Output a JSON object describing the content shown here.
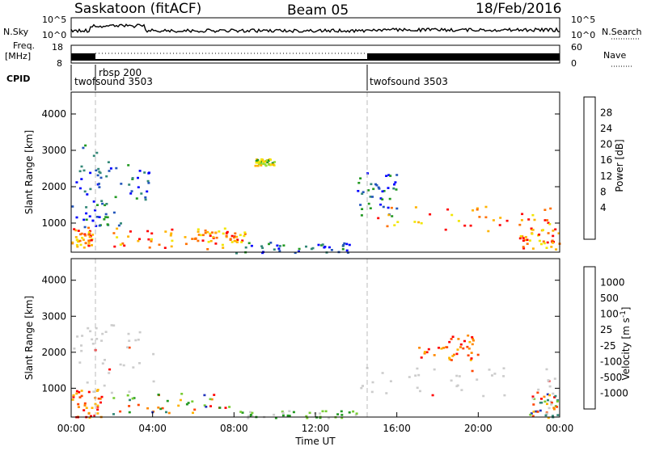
{
  "header": {
    "station": "Saskatoon (fitACF)",
    "beam": "Beam 05",
    "date": "18/Feb/2016"
  },
  "noise_panel": {
    "left_label": "N.Sky",
    "right_label": "N.Search",
    "left_ticks": [
      "10^5",
      "10^0"
    ],
    "right_ticks": [
      "10^5",
      "10^0"
    ]
  },
  "freq_panel": {
    "left_label_1": "Freq.",
    "left_label_2": "[MHz]",
    "right_label": "Nave",
    "left_ticks": [
      "18",
      "8"
    ],
    "right_ticks": [
      "60",
      "0"
    ]
  },
  "cpid_panel": {
    "label": "CPID",
    "segments": [
      {
        "name": "twofsound 3503",
        "start_hour": 0.0
      },
      {
        "name": "rbsp 200",
        "start_hour": 1.0
      },
      {
        "name": "twofsound 3503",
        "start_hour": 14.5
      }
    ]
  },
  "chart_data": [
    {
      "type": "heatmap",
      "title": "Power",
      "xlabel": "",
      "ylabel": "Slant Range [km]",
      "xlim_hours": [
        0,
        24
      ],
      "ylim_km": [
        200,
        4600
      ],
      "yticks": [
        "1000",
        "2000",
        "3000",
        "4000"
      ],
      "colorbar_label": "Power [dB]",
      "colorbar_ticks": [
        "28",
        "24",
        "20",
        "16",
        "12",
        "8",
        "4"
      ],
      "colorbar_colors": [
        "#ff0000",
        "#ff7000",
        "#ffb300",
        "#f2e600",
        "#99dd33",
        "#229922",
        "#338877",
        "#2255bb",
        "#0000ff"
      ],
      "features": [
        {
          "x_start": 0.0,
          "x_end": 1.0,
          "y_low": 300,
          "y_high": 900,
          "level": "high"
        },
        {
          "x_start": 0.0,
          "x_end": 1.8,
          "y_low": 900,
          "y_high": 3200,
          "level": "low"
        },
        {
          "x_start": 1.0,
          "x_end": 3.8,
          "y_low": 900,
          "y_high": 2800,
          "level": "low"
        },
        {
          "x_start": 2.0,
          "x_end": 8.0,
          "y_low": 300,
          "y_high": 900,
          "level": "high"
        },
        {
          "x_start": 6.0,
          "x_end": 8.5,
          "y_low": 500,
          "y_high": 800,
          "level": "high"
        },
        {
          "x_start": 8.0,
          "x_end": 14.0,
          "y_low": 200,
          "y_high": 500,
          "level": "low"
        },
        {
          "x_start": 9.0,
          "x_end": 10.0,
          "y_low": 2600,
          "y_high": 2800,
          "level": "medium"
        },
        {
          "x_start": 14.0,
          "x_end": 16.0,
          "y_low": 1200,
          "y_high": 2400,
          "level": "low"
        },
        {
          "x_start": 15.0,
          "x_end": 24.0,
          "y_low": 800,
          "y_high": 1500,
          "level": "high"
        },
        {
          "x_start": 22.0,
          "x_end": 24.0,
          "y_low": 300,
          "y_high": 900,
          "level": "high"
        }
      ]
    },
    {
      "type": "heatmap",
      "title": "Velocity",
      "xlabel": "Time UT",
      "ylabel": "Slant Range [km]",
      "xlim_hours": [
        0,
        24
      ],
      "ylim_km": [
        200,
        4600
      ],
      "yticks": [
        "1000",
        "2000",
        "3000",
        "4000"
      ],
      "xticks": [
        "00:00",
        "04:00",
        "08:00",
        "12:00",
        "16:00",
        "20:00",
        "00:00"
      ],
      "colorbar_label": "Velocity [m s^-1]",
      "colorbar_ticks": [
        "1000",
        "500",
        "100",
        "25",
        "-25",
        "-100",
        "-500",
        "-1000"
      ],
      "colorbar_colors": [
        "#2233bb",
        "#338877",
        "#229922",
        "#77cc33",
        "#cccccc",
        "#ffb300",
        "#ff8800",
        "#ff4400",
        "#ff0000"
      ],
      "features": [
        {
          "x_start": 0.0,
          "x_end": 1.5,
          "y_low": 200,
          "y_high": 1000,
          "level": "negative"
        },
        {
          "x_start": 0.0,
          "x_end": 4.0,
          "y_low": 900,
          "y_high": 2800,
          "level": "near-zero"
        },
        {
          "x_start": 2.0,
          "x_end": 8.0,
          "y_low": 300,
          "y_high": 900,
          "level": "mixed"
        },
        {
          "x_start": 8.0,
          "x_end": 14.0,
          "y_low": 200,
          "y_high": 400,
          "level": "positive-small"
        },
        {
          "x_start": 14.0,
          "x_end": 24.0,
          "y_low": 800,
          "y_high": 1600,
          "level": "near-zero"
        },
        {
          "x_start": 17.0,
          "x_end": 20.0,
          "y_low": 1800,
          "y_high": 2500,
          "level": "negative"
        },
        {
          "x_start": 22.5,
          "x_end": 24.0,
          "y_low": 200,
          "y_high": 900,
          "level": "mixed"
        }
      ]
    }
  ]
}
